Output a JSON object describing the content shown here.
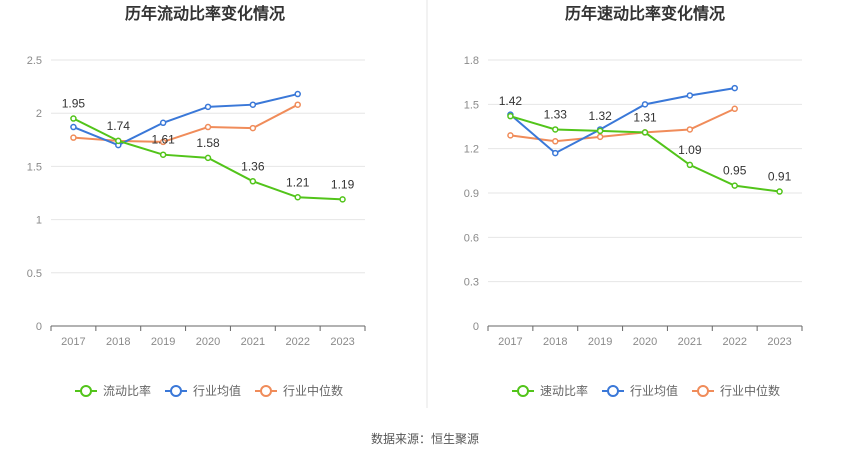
{
  "source": "数据来源：恒生聚源",
  "colors": {
    "series0": "#52c41a",
    "series1": "#3a78d8",
    "series2": "#f08c5a",
    "grid": "#e6e6e6",
    "axis": "#666666",
    "divider": "#e6e6e6"
  },
  "chart_data": [
    {
      "type": "line",
      "title": "历年流动比率变化情况",
      "categories": [
        "2017",
        "2018",
        "2019",
        "2020",
        "2021",
        "2022",
        "2023"
      ],
      "ylim": [
        0,
        2.5
      ],
      "yticks": [
        "0",
        "0.5",
        "1",
        "1.5",
        "2",
        "2.5"
      ],
      "grid": true,
      "legend_position": "bottom",
      "series": [
        {
          "name": "流动比率",
          "values": [
            1.95,
            1.74,
            1.61,
            1.58,
            1.36,
            1.21,
            1.19
          ],
          "labels": [
            "1.95",
            "1.74",
            "1.61",
            "1.58",
            "1.36",
            "1.21",
            "1.19"
          ]
        },
        {
          "name": "行业均值",
          "values": [
            1.87,
            1.7,
            1.91,
            2.06,
            2.08,
            2.18,
            null
          ]
        },
        {
          "name": "行业中位数",
          "values": [
            1.77,
            1.74,
            1.73,
            1.87,
            1.86,
            2.08,
            null
          ]
        }
      ]
    },
    {
      "type": "line",
      "title": "历年速动比率变化情况",
      "categories": [
        "2017",
        "2018",
        "2019",
        "2020",
        "2021",
        "2022",
        "2023"
      ],
      "ylim": [
        0,
        1.8
      ],
      "yticks": [
        "0",
        "0.3",
        "0.6",
        "0.9",
        "1.2",
        "1.5",
        "1.8"
      ],
      "grid": true,
      "legend_position": "bottom",
      "series": [
        {
          "name": "速动比率",
          "values": [
            1.42,
            1.33,
            1.32,
            1.31,
            1.09,
            0.95,
            0.91
          ],
          "labels": [
            "1.42",
            "1.33",
            "1.32",
            "1.31",
            "1.09",
            "0.95",
            "0.91"
          ]
        },
        {
          "name": "行业均值",
          "values": [
            1.43,
            1.17,
            1.33,
            1.5,
            1.56,
            1.61,
            null
          ]
        },
        {
          "name": "行业中位数",
          "values": [
            1.29,
            1.25,
            1.28,
            1.31,
            1.33,
            1.47,
            null
          ]
        }
      ]
    }
  ]
}
